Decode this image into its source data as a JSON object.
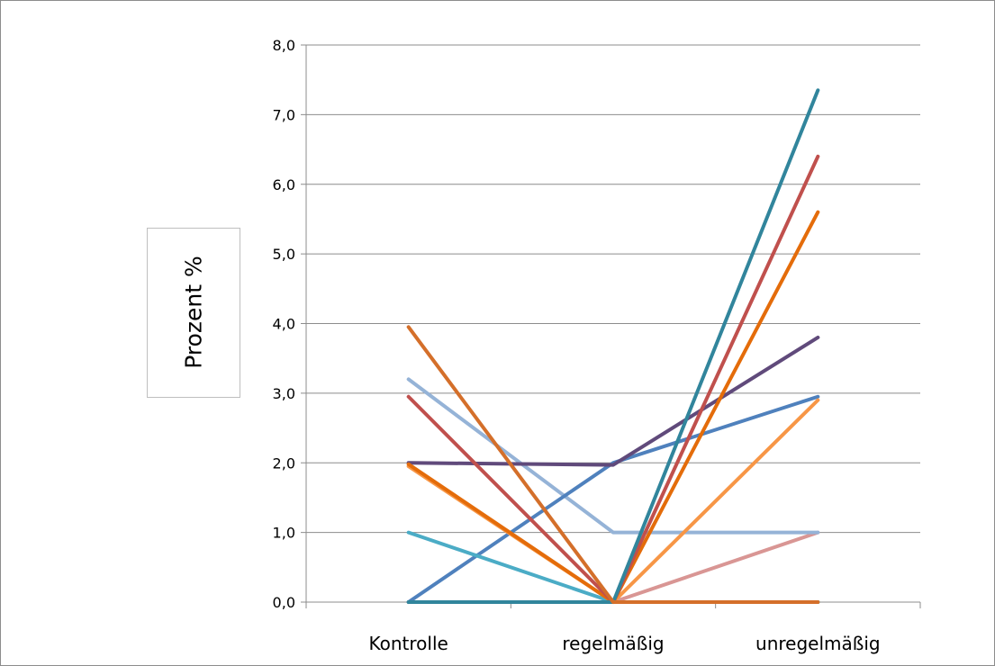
{
  "chart_data": {
    "type": "line",
    "title": "",
    "xlabel": "",
    "ylabel": "Prozent  %",
    "categories": [
      "Kontrolle",
      "regelmäßig",
      "unregelmäßig"
    ],
    "ylim": [
      0,
      8
    ],
    "yticks": [
      "0,0",
      "1,0",
      "2,0",
      "3,0",
      "4,0",
      "5,0",
      "6,0",
      "7,0",
      "8,0"
    ],
    "grid": true,
    "legend": "none",
    "series": [
      {
        "color": "#9bbb59",
        "values": [
          0.0,
          0.0,
          0.0
        ]
      },
      {
        "color": "#d99694",
        "values": [
          0.0,
          0.0,
          1.0
        ]
      },
      {
        "color": "#95b3d7",
        "values": [
          3.2,
          1.0,
          1.0
        ]
      },
      {
        "color": "#4f81bd",
        "values": [
          0.0,
          2.0,
          2.95
        ]
      },
      {
        "color": "#604a7b",
        "values": [
          2.0,
          1.97,
          3.8
        ]
      },
      {
        "color": "#4bacc6",
        "values": [
          1.0,
          0.0,
          0.0
        ]
      },
      {
        "color": "#f79646",
        "values": [
          1.95,
          0.0,
          2.9
        ]
      },
      {
        "color": "#e46c0a",
        "values": [
          1.98,
          0.0,
          5.6
        ]
      },
      {
        "color": "#c0504d",
        "values": [
          2.95,
          0.0,
          6.4
        ]
      },
      {
        "color": "#31859c",
        "values": [
          0.0,
          0.0,
          7.35
        ]
      },
      {
        "color": "#d46f2a",
        "values": [
          3.95,
          0.0,
          0.0
        ]
      }
    ]
  }
}
